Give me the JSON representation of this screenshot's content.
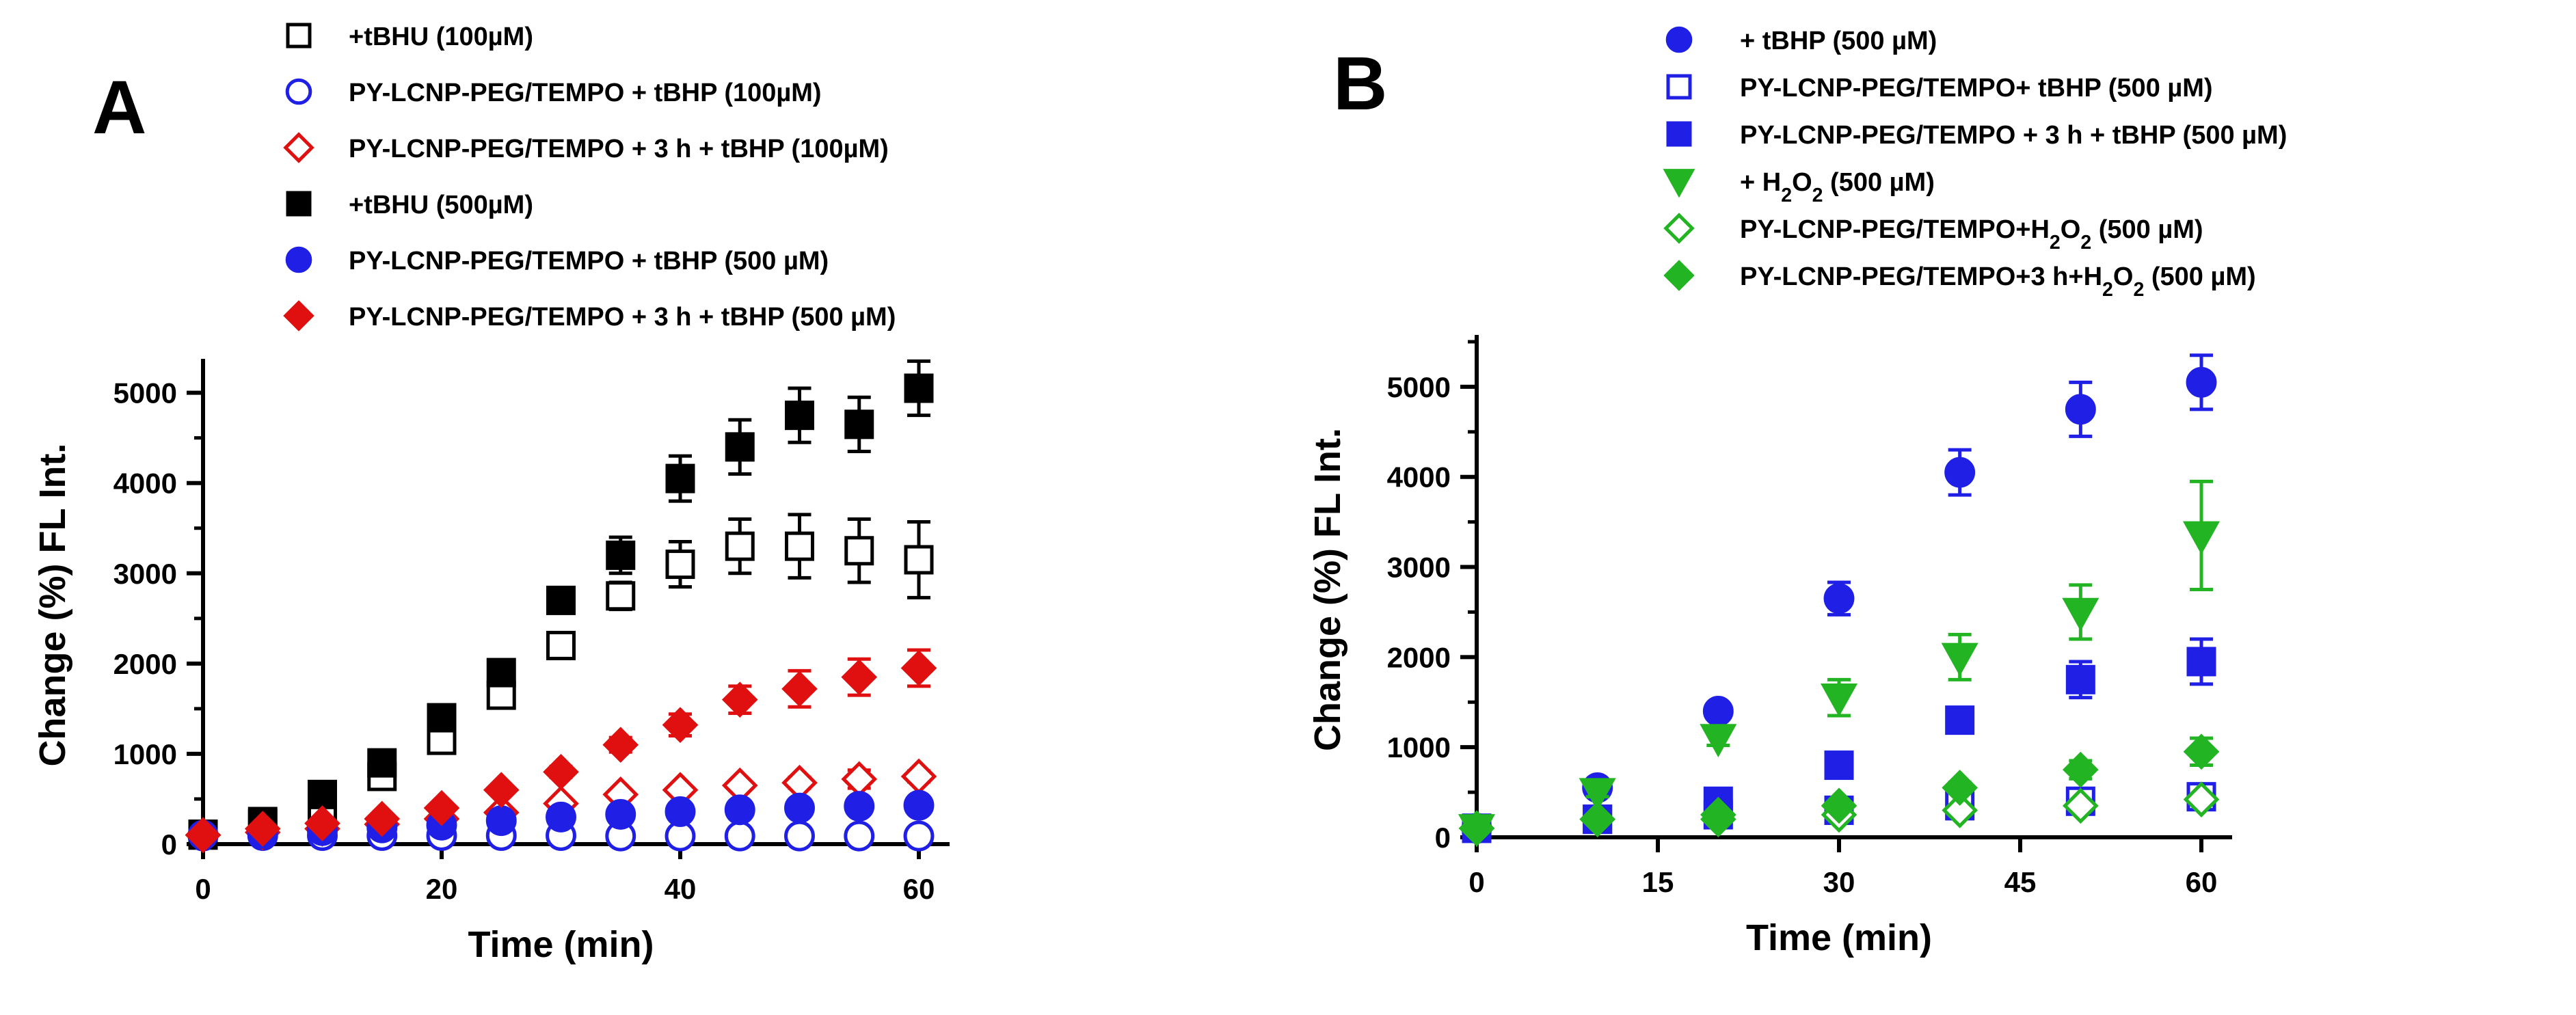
{
  "chart_data": [
    {
      "type": "scatter",
      "panel_label": "A",
      "title": "",
      "xlabel": "Time (min)",
      "ylabel": "Change (%) FL Int.",
      "xlim": [
        0,
        60
      ],
      "ylim": [
        0,
        5300
      ],
      "xticks": [
        0,
        20,
        40,
        60
      ],
      "yticks": [
        0,
        1000,
        2000,
        3000,
        4000,
        5000
      ],
      "grid": false,
      "legend_position": "top",
      "series": [
        {
          "name": "+tBHU (100µM)",
          "marker": "square-open",
          "color": "#000000",
          "x": [
            0,
            5,
            10,
            15,
            20,
            25,
            30,
            35,
            40,
            45,
            50,
            55,
            60
          ],
          "y": [
            100,
            220,
            430,
            750,
            1150,
            1650,
            2200,
            2750,
            3100,
            3300,
            3300,
            3250,
            3150
          ],
          "err": [
            30,
            40,
            50,
            60,
            70,
            80,
            90,
            150,
            250,
            300,
            350,
            350,
            420
          ]
        },
        {
          "name": "PY-LCNP-PEG/TEMPO + tBHP (100µM)",
          "marker": "circle-open",
          "color": "#1f1fe6",
          "x": [
            0,
            5,
            10,
            15,
            20,
            25,
            30,
            35,
            40,
            45,
            50,
            55,
            60
          ],
          "y": [
            90,
            95,
            95,
            95,
            95,
            95,
            95,
            90,
            90,
            90,
            90,
            90,
            90
          ],
          "err": [
            10,
            10,
            10,
            10,
            10,
            10,
            10,
            10,
            10,
            10,
            10,
            10,
            10
          ]
        },
        {
          "name": "PY-LCNP-PEG/TEMPO + 3 h + tBHP (100µM)",
          "marker": "diamond-open",
          "color": "#e01010",
          "x": [
            0,
            5,
            10,
            15,
            20,
            25,
            30,
            35,
            40,
            45,
            50,
            55,
            60
          ],
          "y": [
            100,
            130,
            170,
            220,
            280,
            350,
            450,
            550,
            600,
            650,
            680,
            720,
            750
          ],
          "err": [
            10,
            10,
            10,
            20,
            20,
            30,
            40,
            40,
            50,
            50,
            60,
            100,
            60
          ]
        },
        {
          "name": "+tBHU (500µM)",
          "marker": "square-filled",
          "color": "#000000",
          "x": [
            0,
            5,
            10,
            15,
            20,
            25,
            30,
            35,
            40,
            45,
            50,
            55,
            60
          ],
          "y": [
            110,
            250,
            550,
            900,
            1400,
            1900,
            2700,
            3200,
            4050,
            4400,
            4750,
            4650,
            5050
          ],
          "err": [
            30,
            40,
            50,
            60,
            70,
            80,
            100,
            200,
            250,
            300,
            300,
            300,
            300
          ]
        },
        {
          "name": "PY-LCNP-PEG/TEMPO + tBHP (500 µM)",
          "marker": "circle-filled",
          "color": "#1f1fe6",
          "x": [
            0,
            5,
            10,
            15,
            20,
            25,
            30,
            35,
            40,
            45,
            50,
            55,
            60
          ],
          "y": [
            100,
            120,
            150,
            180,
            210,
            260,
            300,
            330,
            360,
            380,
            400,
            420,
            430
          ],
          "err": [
            10,
            10,
            10,
            20,
            20,
            30,
            30,
            30,
            40,
            40,
            40,
            40,
            40
          ]
        },
        {
          "name": "PY-LCNP-PEG/TEMPO + 3 h + tBHP (500 µM)",
          "marker": "diamond-filled",
          "color": "#e01010",
          "x": [
            0,
            5,
            10,
            15,
            20,
            25,
            30,
            35,
            40,
            45,
            50,
            55,
            60
          ],
          "y": [
            100,
            170,
            230,
            280,
            400,
            600,
            800,
            1100,
            1320,
            1600,
            1720,
            1850,
            1950
          ],
          "err": [
            20,
            20,
            30,
            30,
            40,
            50,
            60,
            80,
            120,
            150,
            200,
            200,
            200
          ]
        }
      ]
    },
    {
      "type": "scatter",
      "panel_label": "B",
      "title": "",
      "xlabel": "Time (min)",
      "ylabel": "Change (%) FL Int.",
      "xlim": [
        0,
        60
      ],
      "ylim": [
        0,
        5500
      ],
      "xticks": [
        0,
        15,
        30,
        45,
        60
      ],
      "yticks": [
        0,
        1000,
        2000,
        3000,
        4000,
        5000
      ],
      "grid": false,
      "legend_position": "top",
      "series": [
        {
          "name": "+ tBHP (500 µM)",
          "marker": "circle-filled",
          "color": "#1f1fe6",
          "x": [
            0,
            10,
            20,
            30,
            40,
            50,
            60
          ],
          "y": [
            100,
            550,
            1400,
            2650,
            4050,
            4750,
            5050
          ],
          "err": [
            20,
            50,
            60,
            180,
            250,
            300,
            300
          ]
        },
        {
          "name": "PY-LCNP-PEG/TEMPO+ tBHP (500 µM)",
          "marker": "square-open",
          "color": "#1f1fe6",
          "x": [
            0,
            10,
            20,
            30,
            40,
            50,
            60
          ],
          "y": [
            100,
            200,
            250,
            300,
            350,
            400,
            450
          ],
          "err": [
            10,
            20,
            20,
            20,
            20,
            30,
            30
          ]
        },
        {
          "name": "PY-LCNP-PEG/TEMPO + 3 h + tBHP (500 µM)",
          "marker": "square-filled",
          "color": "#1f1fe6",
          "x": [
            0,
            10,
            20,
            30,
            40,
            50,
            60
          ],
          "y": [
            100,
            200,
            400,
            800,
            1300,
            1750,
            1950
          ],
          "err": [
            20,
            30,
            40,
            60,
            120,
            200,
            250
          ]
        },
        {
          "name": "+ H2O2 (500 µM)",
          "marker": "triangle-down-filled",
          "color": "#22b422",
          "x": [
            0,
            10,
            20,
            30,
            40,
            50,
            60
          ],
          "y": [
            100,
            500,
            1100,
            1550,
            2000,
            2500,
            3350
          ],
          "err": [
            20,
            50,
            80,
            200,
            250,
            300,
            600
          ]
        },
        {
          "name": "PY-LCNP-PEG/TEMPO+H2O2 (500 µM)",
          "marker": "diamond-open",
          "color": "#22b422",
          "x": [
            0,
            10,
            20,
            30,
            40,
            50,
            60
          ],
          "y": [
            100,
            200,
            200,
            250,
            300,
            350,
            420
          ],
          "err": [
            10,
            20,
            20,
            20,
            20,
            30,
            30
          ]
        },
        {
          "name": "PY-LCNP-PEG/TEMPO+3 h+H2O2 (500 µM)",
          "marker": "diamond-filled",
          "color": "#22b422",
          "x": [
            0,
            10,
            20,
            30,
            40,
            50,
            60
          ],
          "y": [
            100,
            200,
            250,
            350,
            550,
            750,
            950
          ],
          "err": [
            10,
            20,
            30,
            40,
            60,
            100,
            150
          ]
        }
      ]
    }
  ]
}
